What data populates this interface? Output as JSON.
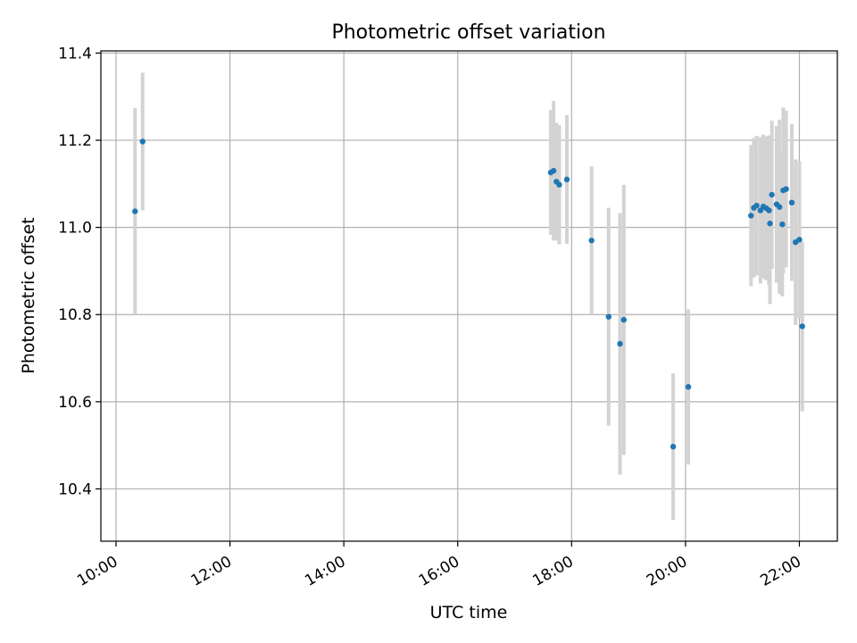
{
  "chart_data": {
    "type": "scatter",
    "title": "Photometric offset variation",
    "xlabel": "UTC time",
    "ylabel": "Photometric offset",
    "x_is_time": true,
    "xlim": [
      "09:44",
      "22:40"
    ],
    "ylim": [
      10.28,
      11.405
    ],
    "xticks": [
      "10:00",
      "12:00",
      "14:00",
      "16:00",
      "18:00",
      "20:00",
      "22:00"
    ],
    "yticks": [
      "10.4",
      "10.6",
      "10.8",
      "11.0",
      "11.2",
      "11.4"
    ],
    "grid": true,
    "marker_color": "#1f77b4",
    "errorbar_color": "#d3d3d3",
    "series": [
      {
        "points": [
          {
            "x": "10:20",
            "y": 11.037,
            "err": 0.237
          },
          {
            "x": "10:28",
            "y": 11.197,
            "err": 0.158
          },
          {
            "x": "17:38",
            "y": 11.126,
            "err": 0.143
          },
          {
            "x": "17:41",
            "y": 11.13,
            "err": 0.16
          },
          {
            "x": "17:44",
            "y": 11.105,
            "err": 0.135
          },
          {
            "x": "17:47",
            "y": 11.098,
            "err": 0.137
          },
          {
            "x": "17:55",
            "y": 11.11,
            "err": 0.148
          },
          {
            "x": "18:21",
            "y": 10.97,
            "err": 0.17
          },
          {
            "x": "18:39",
            "y": 10.795,
            "err": 0.25
          },
          {
            "x": "18:51",
            "y": 10.733,
            "err": 0.3
          },
          {
            "x": "18:55",
            "y": 10.788,
            "err": 0.31
          },
          {
            "x": "19:47",
            "y": 10.497,
            "err": 0.168
          },
          {
            "x": "20:03",
            "y": 10.634,
            "err": 0.178
          },
          {
            "x": "21:09",
            "y": 11.027,
            "err": 0.162
          },
          {
            "x": "21:12",
            "y": 11.045,
            "err": 0.16
          },
          {
            "x": "21:15",
            "y": 11.05,
            "err": 0.16
          },
          {
            "x": "21:19",
            "y": 11.039,
            "err": 0.168
          },
          {
            "x": "21:22",
            "y": 11.048,
            "err": 0.165
          },
          {
            "x": "21:25",
            "y": 11.044,
            "err": 0.165
          },
          {
            "x": "21:28",
            "y": 11.039,
            "err": 0.172
          },
          {
            "x": "21:29",
            "y": 11.009,
            "err": 0.185
          },
          {
            "x": "21:31",
            "y": 11.075,
            "err": 0.17
          },
          {
            "x": "21:36",
            "y": 11.053,
            "err": 0.18
          },
          {
            "x": "21:39",
            "y": 11.047,
            "err": 0.2
          },
          {
            "x": "21:42",
            "y": 11.007,
            "err": 0.165
          },
          {
            "x": "21:43",
            "y": 11.085,
            "err": 0.19
          },
          {
            "x": "21:46",
            "y": 11.088,
            "err": 0.18
          },
          {
            "x": "21:52",
            "y": 11.057,
            "err": 0.18
          },
          {
            "x": "21:56",
            "y": 10.966,
            "err": 0.19
          },
          {
            "x": "22:00",
            "y": 10.972,
            "err": 0.18
          },
          {
            "x": "22:03",
            "y": 10.773,
            "err": 0.195
          }
        ]
      }
    ]
  }
}
